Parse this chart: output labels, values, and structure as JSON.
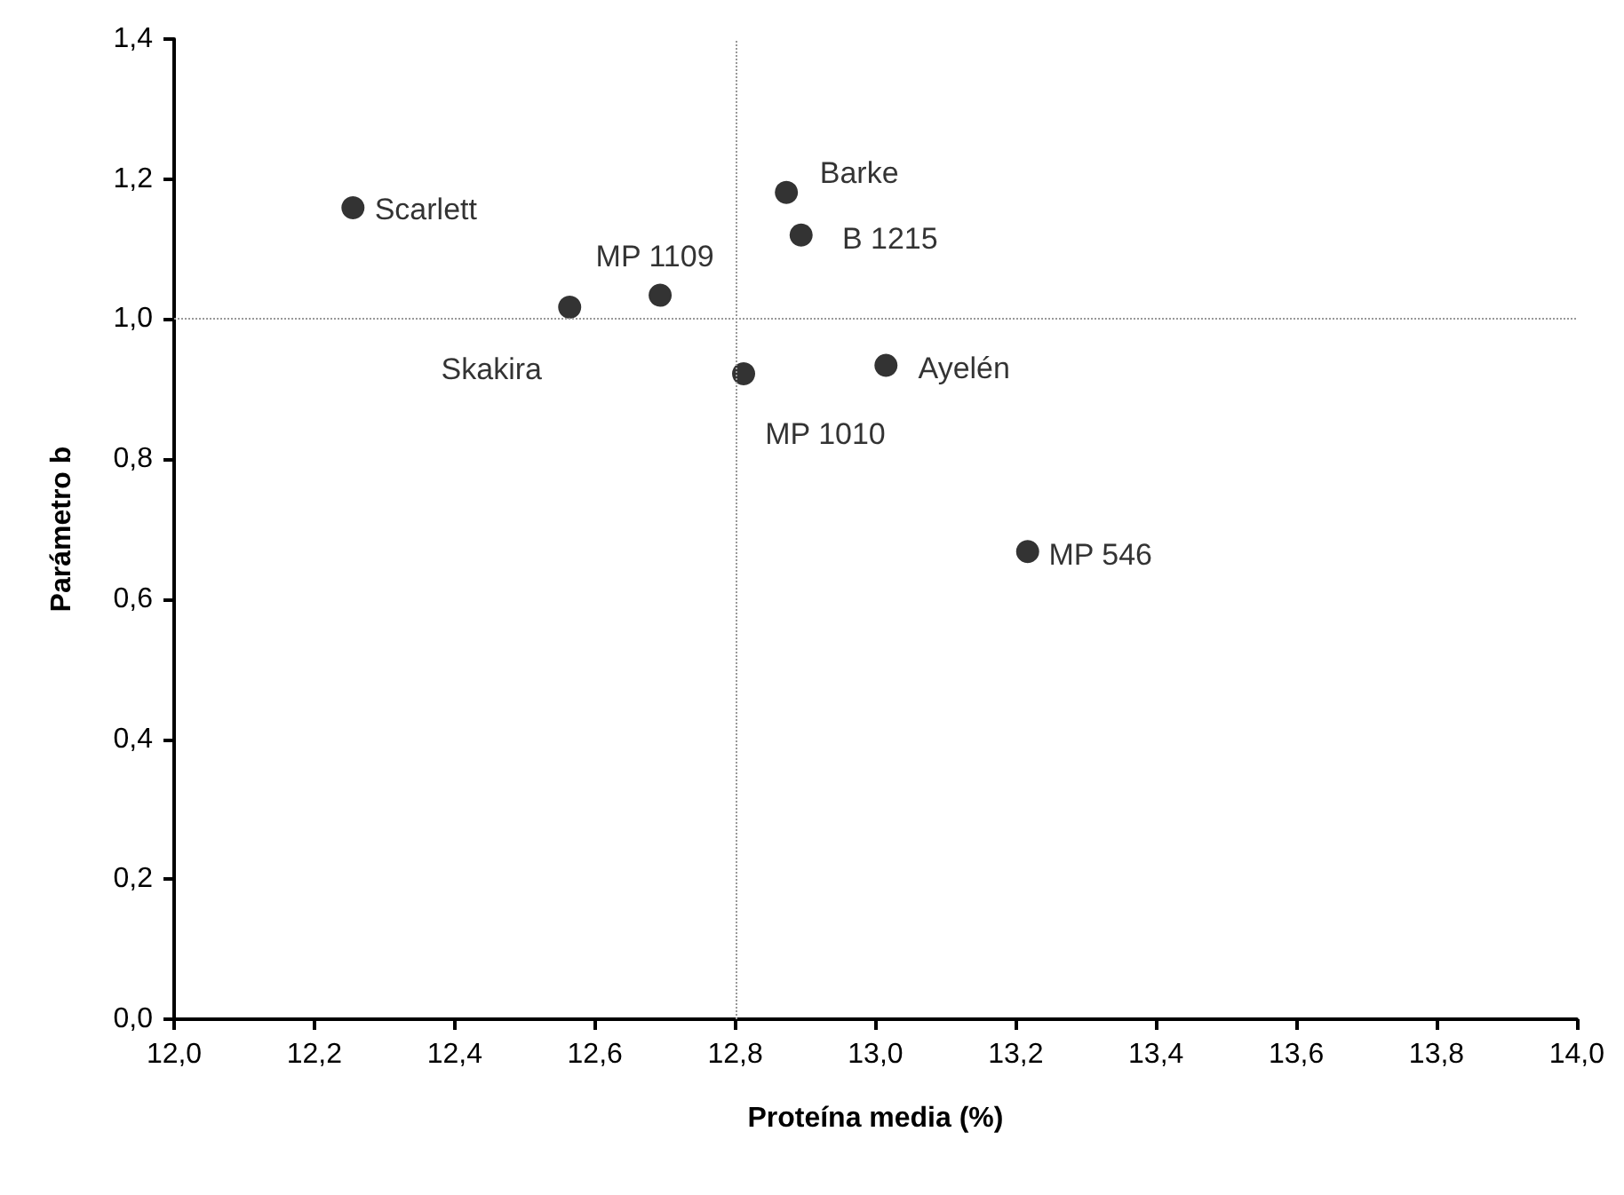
{
  "chart_data": {
    "type": "scatter",
    "xlabel": "Proteína media (%)",
    "ylabel": "Parámetro b",
    "series": [
      {
        "name": "Scarlett",
        "color": "#000000",
        "x": [
          12.255
        ],
        "values": [
          1.159
        ]
      },
      {
        "name": "Skakira",
        "color": "#000000",
        "x": [
          12.564
        ],
        "values": [
          1.017
        ]
      },
      {
        "name": "MP 1109",
        "color": "#000000",
        "x": [
          12.693
        ],
        "values": [
          1.034
        ]
      },
      {
        "name": "Barke",
        "color": "#000000",
        "x": [
          12.873
        ],
        "values": [
          1.181
        ]
      },
      {
        "name": "B 1215",
        "color": "#000000",
        "x": [
          12.894
        ],
        "values": [
          1.12
        ]
      },
      {
        "name": "MP 1010",
        "color": "#000000",
        "x": [
          12.812
        ],
        "values": [
          0.922
        ]
      },
      {
        "name": "Ayelén",
        "color": "#000000",
        "x": [
          13.015
        ],
        "values": [
          0.934
        ]
      },
      {
        "name": "MP 546",
        "color": "#000000",
        "x": [
          13.217
        ],
        "values": [
          0.668
        ]
      }
    ],
    "xlim": [
      12,
      14
    ],
    "xticks": [
      {
        "value": 12,
        "label": "12,0"
      },
      {
        "value": 12.2,
        "label": "12,2"
      },
      {
        "value": 12.4,
        "label": "12,4"
      },
      {
        "value": 12.6,
        "label": "12,6"
      },
      {
        "value": 12.8,
        "label": "12,8"
      },
      {
        "value": 13,
        "label": "13,0"
      },
      {
        "value": 13.2,
        "label": "13,2"
      },
      {
        "value": 13.4,
        "label": "13,4"
      },
      {
        "value": 13.6,
        "label": "13,6"
      },
      {
        "value": 13.8,
        "label": "13,8"
      },
      {
        "value": 14,
        "label": "14,0"
      }
    ],
    "ylim": [
      0,
      1.4
    ],
    "yticks": [
      {
        "value": 0,
        "label": "0,0"
      },
      {
        "value": 0.2,
        "label": "0,2"
      },
      {
        "value": 0.4,
        "label": "0,4"
      },
      {
        "value": 0.6,
        "label": "0,6"
      },
      {
        "value": 0.8,
        "label": "0,8"
      },
      {
        "value": 1,
        "label": "1,0"
      },
      {
        "value": 1.2,
        "label": "1,2"
      },
      {
        "value": 1.4,
        "label": "1,4"
      }
    ],
    "ref_lines": [
      {
        "axis": "x",
        "value": 12.8,
        "color": "#999999",
        "line_style": "dotted"
      },
      {
        "axis": "y",
        "value": 1,
        "color": "#999999",
        "line_style": "dotted"
      }
    ],
    "marker": "circle",
    "grid": false,
    "legend": false
  }
}
